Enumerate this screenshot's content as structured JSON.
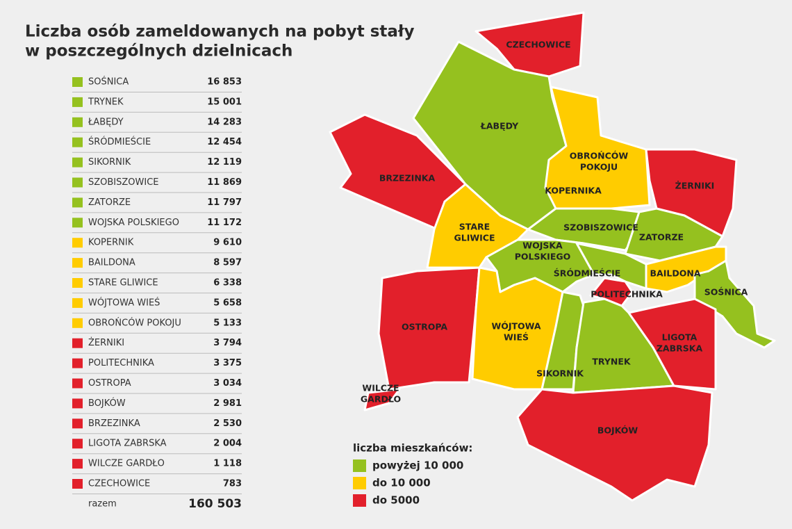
{
  "header": {
    "title": [
      "Liczba osób zameldowanych na pobyt stały",
      "w poszczególnych dzielnicach"
    ]
  },
  "table": {
    "rows": [
      {
        "name": "SOŚNICA",
        "value": "16 853",
        "color": "#95c11f"
      },
      {
        "name": "TRYNEK",
        "value": "15 001",
        "color": "#95c11f"
      },
      {
        "name": "ŁABĘDY",
        "value": "14 283",
        "color": "#95c11f"
      },
      {
        "name": "ŚRÓDMIEŚCIE",
        "value": "12 454",
        "color": "#95c11f"
      },
      {
        "name": "SIKORNIK",
        "value": "12 119",
        "color": "#95c11f"
      },
      {
        "name": "SZOBISZOWICE",
        "value": "11 869",
        "color": "#95c11f"
      },
      {
        "name": "ZATORZE",
        "value": "11 797",
        "color": "#95c11f"
      },
      {
        "name": "WOJSKA POLSKIEGO",
        "value": "11 172",
        "color": "#95c11f"
      },
      {
        "name": "KOPERNIK",
        "value": "9 610",
        "color": "#ffcc00"
      },
      {
        "name": "BAILDONA",
        "value": "8 597",
        "color": "#ffcc00"
      },
      {
        "name": "STARE GLIWICE",
        "value": "6 338",
        "color": "#ffcc00"
      },
      {
        "name": "WÓJTOWA WIEŚ",
        "value": "5 658",
        "color": "#ffcc00"
      },
      {
        "name": "OBROŃCÓW POKOJU",
        "value": "5 133",
        "color": "#ffcc00"
      },
      {
        "name": "ŻERNIKI",
        "value": "3 794",
        "color": "#e2202b"
      },
      {
        "name": "POLITECHNIKA",
        "value": "3 375",
        "color": "#e2202b"
      },
      {
        "name": "OSTROPA",
        "value": "3 034",
        "color": "#e2202b"
      },
      {
        "name": "BOJKÓW",
        "value": "2 981",
        "color": "#e2202b"
      },
      {
        "name": "BRZEZINKA",
        "value": "2 530",
        "color": "#e2202b"
      },
      {
        "name": "LIGOTA ZABRSKA",
        "value": "2 004",
        "color": "#e2202b"
      },
      {
        "name": "WILCZE GARDŁO",
        "value": "1 118",
        "color": "#e2202b"
      },
      {
        "name": "CZECHOWICE",
        "value": "783",
        "color": "#e2202b"
      }
    ],
    "total_label": "razem",
    "total_value": "160 503"
  },
  "legend": {
    "title": "liczba mieszkańców:",
    "items": [
      {
        "label": "powyżej 10 000",
        "color": "#95c11f"
      },
      {
        "label": "do 10 000",
        "color": "#ffcc00"
      },
      {
        "label": "do 5000",
        "color": "#e2202b"
      }
    ]
  },
  "map_labels": [
    [
      "CZECHOWICE"
    ],
    [
      "ŁABĘDY"
    ],
    [
      "BRZEZINKA"
    ],
    [
      "OBROŃCÓW",
      "POKOJU"
    ],
    [
      "KOPERNIKA"
    ],
    [
      "ŻERNIKI"
    ],
    [
      "STARE",
      "GLIWICE"
    ],
    [
      "SZOBISZOWICE"
    ],
    [
      "ZATORZE"
    ],
    [
      "WOJSKA",
      "POLSKIEGO"
    ],
    [
      "ŚRÓDMIEŚCIE"
    ],
    [
      "BAILDONA"
    ],
    [
      "POLITECHNIKA"
    ],
    [
      "SOŚNICA"
    ],
    [
      "OSTROPA"
    ],
    [
      "WÓJTOWA",
      "WIEŚ"
    ],
    [
      "LIGOTA",
      "ZABRSKA"
    ],
    [
      "TRYNEK"
    ],
    [
      "SIKORNIK"
    ],
    [
      "WILCZE",
      "GARDŁO"
    ],
    [
      "BOJKÓW"
    ]
  ]
}
